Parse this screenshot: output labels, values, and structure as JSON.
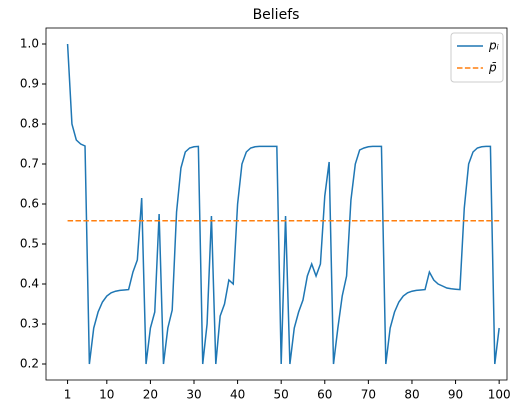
{
  "chart_data": {
    "type": "line",
    "title": "Beliefs",
    "x": [
      1,
      2,
      3,
      4,
      5,
      6,
      7,
      8,
      9,
      10,
      11,
      12,
      13,
      14,
      15,
      16,
      17,
      18,
      19,
      20,
      21,
      22,
      23,
      24,
      25,
      26,
      27,
      28,
      29,
      30,
      31,
      32,
      33,
      34,
      35,
      36,
      37,
      38,
      39,
      40,
      41,
      42,
      43,
      44,
      45,
      46,
      47,
      48,
      49,
      50,
      51,
      52,
      53,
      54,
      55,
      56,
      57,
      58,
      59,
      60,
      61,
      62,
      63,
      64,
      65,
      66,
      67,
      68,
      69,
      70,
      71,
      72,
      73,
      74,
      75,
      76,
      77,
      78,
      79,
      80,
      81,
      82,
      83,
      84,
      85,
      86,
      87,
      88,
      89,
      90,
      91,
      92,
      93,
      94,
      95,
      96,
      97,
      98,
      99,
      100
    ],
    "series": [
      {
        "name": "pᵢ",
        "color": "#1f77b4",
        "style": "solid",
        "values": [
          1.0,
          0.8,
          0.76,
          0.75,
          0.745,
          0.2,
          0.29,
          0.33,
          0.355,
          0.37,
          0.378,
          0.382,
          0.384,
          0.385,
          0.386,
          0.43,
          0.46,
          0.615,
          0.2,
          0.29,
          0.33,
          0.575,
          0.2,
          0.29,
          0.335,
          0.58,
          0.69,
          0.73,
          0.74,
          0.743,
          0.744,
          0.2,
          0.3,
          0.57,
          0.2,
          0.32,
          0.35,
          0.41,
          0.4,
          0.6,
          0.7,
          0.73,
          0.74,
          0.743,
          0.744,
          0.744,
          0.744,
          0.744,
          0.744,
          0.2,
          0.57,
          0.2,
          0.29,
          0.33,
          0.36,
          0.42,
          0.45,
          0.42,
          0.45,
          0.62,
          0.705,
          0.2,
          0.29,
          0.37,
          0.42,
          0.61,
          0.7,
          0.735,
          0.74,
          0.743,
          0.744,
          0.744,
          0.744,
          0.2,
          0.29,
          0.33,
          0.355,
          0.37,
          0.378,
          0.382,
          0.384,
          0.385,
          0.386,
          0.43,
          0.41,
          0.4,
          0.395,
          0.39,
          0.388,
          0.387,
          0.386,
          0.59,
          0.7,
          0.73,
          0.74,
          0.743,
          0.744,
          0.744,
          0.2,
          0.29
        ]
      },
      {
        "name": "p̄",
        "color": "#ff7f0e",
        "style": "dashed",
        "x": [
          1,
          100
        ],
        "values": [
          0.558,
          0.558
        ]
      }
    ],
    "xlim": [
      -3.95,
      101.8
    ],
    "ylim": [
      0.16,
      1.04
    ],
    "xticks": [
      1,
      10,
      20,
      30,
      40,
      50,
      60,
      70,
      80,
      90,
      100
    ],
    "yticks": [
      0.2,
      0.3,
      0.4,
      0.5,
      0.6,
      0.7,
      0.8,
      0.9,
      {
        "value": 1.0,
        "label": "1.0"
      }
    ],
    "legend": "upper right"
  }
}
